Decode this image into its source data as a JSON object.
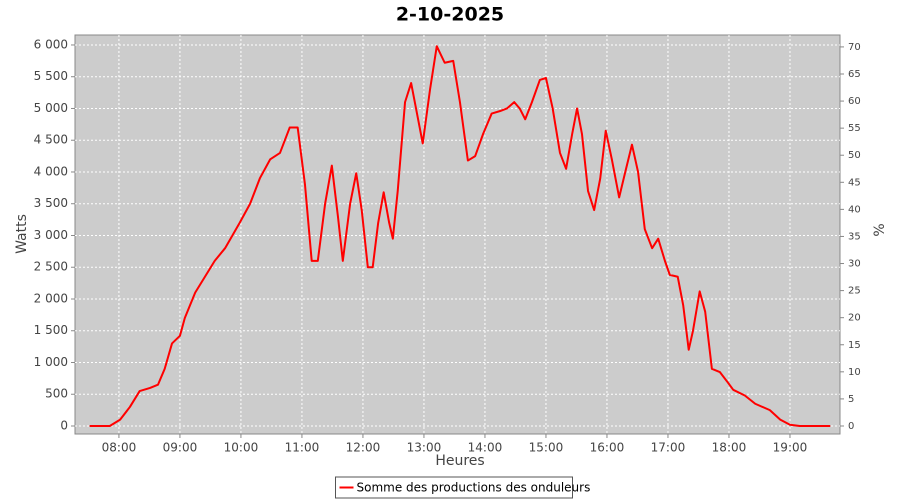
{
  "chart_data": {
    "type": "line",
    "title": "2-10-2025",
    "x_label": "Heures",
    "y_label": "Watts",
    "y2_label": "%",
    "x": [
      7.52,
      7.85,
      8.02,
      8.18,
      8.34,
      8.51,
      8.64,
      8.75,
      8.87,
      9.0,
      9.08,
      9.25,
      9.41,
      9.57,
      9.74,
      9.98,
      10.15,
      10.31,
      10.48,
      10.64,
      10.8,
      10.93,
      11.05,
      11.16,
      11.26,
      11.38,
      11.49,
      11.59,
      11.67,
      11.79,
      11.89,
      11.98,
      12.08,
      12.16,
      12.25,
      12.34,
      12.43,
      12.49,
      12.57,
      12.69,
      12.79,
      12.87,
      12.98,
      13.1,
      13.21,
      13.34,
      13.48,
      13.59,
      13.72,
      13.84,
      13.97,
      14.11,
      14.25,
      14.36,
      14.48,
      14.57,
      14.66,
      14.77,
      14.9,
      15.0,
      15.11,
      15.23,
      15.33,
      15.43,
      15.51,
      15.59,
      15.69,
      15.79,
      15.89,
      15.98,
      16.08,
      16.2,
      16.3,
      16.41,
      16.51,
      16.62,
      16.74,
      16.84,
      16.95,
      17.03,
      17.16,
      17.25,
      17.34,
      17.41,
      17.52,
      17.61,
      17.72,
      17.85,
      17.97,
      18.07,
      18.26,
      18.43,
      18.67,
      18.84,
      19.0,
      19.16,
      19.66
    ],
    "series": [
      {
        "name": "Somme des productions des onduleurs",
        "color": "#ff0000",
        "values": [
          0,
          0,
          100,
          300,
          550,
          600,
          650,
          900,
          1300,
          1420,
          1700,
          2100,
          2350,
          2600,
          2800,
          3200,
          3500,
          3900,
          4200,
          4300,
          4700,
          4700,
          3800,
          2600,
          2600,
          3500,
          4100,
          3300,
          2600,
          3500,
          3980,
          3400,
          2500,
          2500,
          3200,
          3680,
          3200,
          2950,
          3700,
          5100,
          5400,
          5000,
          4450,
          5300,
          5980,
          5720,
          5750,
          5100,
          4180,
          4250,
          4600,
          4920,
          4960,
          5000,
          5100,
          5000,
          4830,
          5100,
          5450,
          5480,
          5000,
          4300,
          4050,
          4600,
          5000,
          4600,
          3700,
          3400,
          3900,
          4650,
          4200,
          3600,
          4000,
          4430,
          4000,
          3100,
          2800,
          2950,
          2600,
          2380,
          2350,
          1900,
          1200,
          1500,
          2120,
          1800,
          900,
          850,
          700,
          570,
          480,
          350,
          250,
          100,
          20,
          0,
          0
        ]
      }
    ],
    "xlim": [
      7.28,
      19.82
    ],
    "xticks": [
      {
        "value": 8,
        "label": "08:00"
      },
      {
        "value": 9,
        "label": "09:00"
      },
      {
        "value": 10,
        "label": "10:00"
      },
      {
        "value": 11,
        "label": "11:00"
      },
      {
        "value": 12,
        "label": "12:00"
      },
      {
        "value": 13,
        "label": "13:00"
      },
      {
        "value": 14,
        "label": "14:00"
      },
      {
        "value": 15,
        "label": "15:00"
      },
      {
        "value": 16,
        "label": "16:00"
      },
      {
        "value": 17,
        "label": "17:00"
      },
      {
        "value": 18,
        "label": "18:00"
      },
      {
        "value": 19,
        "label": "19:00"
      }
    ],
    "ylim": [
      -126,
      6157
    ],
    "yticks": [
      0,
      500,
      {
        "value": 1000,
        "label": "1 000"
      },
      {
        "value": 1500,
        "label": "1 500"
      },
      {
        "value": 2000,
        "label": "2 000"
      },
      {
        "value": 2500,
        "label": "2 500"
      },
      {
        "value": 3000,
        "label": "3 000"
      },
      {
        "value": 3500,
        "label": "3 500"
      },
      {
        "value": 4000,
        "label": "4 000"
      },
      {
        "value": 4500,
        "label": "4 500"
      },
      {
        "value": 5000,
        "label": "5 000"
      },
      {
        "value": 5500,
        "label": "5 500"
      },
      {
        "value": 6000,
        "label": "6 000"
      }
    ],
    "y2lim": [
      -1.48,
      72.2
    ],
    "y2ticks": [
      0,
      5,
      10,
      15,
      20,
      25,
      30,
      35,
      40,
      45,
      50,
      55,
      60,
      65,
      70
    ],
    "grid": true,
    "legend": "bottom"
  }
}
